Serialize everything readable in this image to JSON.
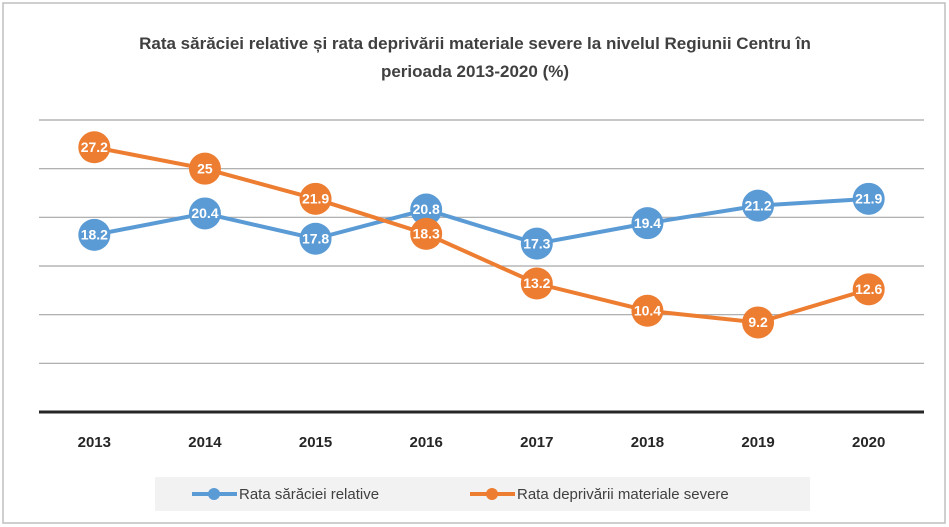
{
  "chart_data": {
    "type": "line",
    "title": "Rata sărăciei relative și rata deprivării materiale severe la nivelul Regiunii Centru în perioada 2013-2020 (%)",
    "categories": [
      "2013",
      "2014",
      "2015",
      "2016",
      "2017",
      "2018",
      "2019",
      "2020"
    ],
    "series": [
      {
        "name": "Rata sărăciei relative",
        "color": "#5b9bd5",
        "values": [
          18.2,
          20.4,
          17.8,
          20.8,
          17.3,
          19.4,
          21.2,
          21.9
        ]
      },
      {
        "name": "Rata deprivării materiale severe",
        "color": "#ed7d31",
        "values": [
          27.2,
          25,
          21.9,
          18.3,
          13.2,
          10.4,
          9.2,
          12.6
        ]
      }
    ],
    "ylim": [
      0,
      30
    ],
    "yticks": [
      0,
      5,
      10,
      15,
      20,
      25,
      30
    ],
    "grid": true,
    "legend": "bottom"
  }
}
